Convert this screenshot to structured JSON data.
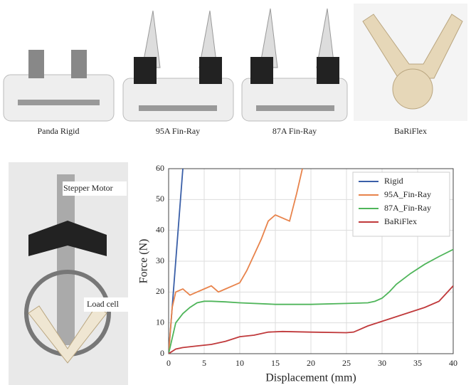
{
  "figure": {
    "captions": [
      "Panda Rigid",
      "95A Fin-Ray",
      "87A Fin-Ray",
      "BaRiFlex"
    ],
    "photo_labels": [
      "Stepper Motor",
      "Load cell"
    ]
  },
  "chart_data": {
    "type": "line",
    "xlabel": "Displacement (mm)",
    "ylabel": "Force (N)",
    "xlim": [
      0,
      40
    ],
    "ylim": [
      0,
      60
    ],
    "xticks": [
      0,
      5,
      10,
      15,
      20,
      25,
      30,
      35,
      40
    ],
    "yticks": [
      0,
      10,
      20,
      30,
      40,
      50,
      60
    ],
    "grid": true,
    "legend": "upper right",
    "series": [
      {
        "name": "Rigid",
        "color": "#3a5fa8",
        "x": [
          0,
          0.5,
          1,
          1.5,
          2
        ],
        "values": [
          0,
          15,
          30,
          45,
          60
        ]
      },
      {
        "name": "95A_Fin-Ray",
        "color": "#e8834b",
        "x": [
          0,
          0.5,
          1,
          2,
          3,
          4,
          5,
          6,
          7,
          8,
          9,
          10,
          11,
          12,
          13,
          14,
          15,
          16,
          17,
          18,
          18.8
        ],
        "values": [
          0,
          15,
          20,
          21,
          19,
          20,
          21,
          22,
          20,
          21,
          22,
          23,
          27,
          32,
          37,
          43,
          45,
          44,
          43,
          52,
          60
        ]
      },
      {
        "name": "87A_Fin-Ray",
        "color": "#4fb55a",
        "x": [
          0,
          1,
          2,
          3,
          4,
          5,
          6,
          8,
          10,
          15,
          20,
          25,
          28,
          29,
          30,
          31,
          32,
          34,
          36,
          38,
          40
        ],
        "values": [
          0,
          10,
          13,
          15,
          16.5,
          17,
          17,
          16.8,
          16.5,
          16,
          16,
          16.3,
          16.5,
          17,
          18,
          20,
          22.5,
          26,
          29,
          31.5,
          33.8
        ]
      },
      {
        "name": "BaRiFlex",
        "color": "#c0393b",
        "x": [
          0,
          1,
          2,
          4,
          6,
          8,
          10,
          12,
          14,
          16,
          20,
          25,
          26,
          28,
          30,
          32,
          34,
          36,
          38,
          40
        ],
        "values": [
          0,
          1.5,
          2,
          2.5,
          3,
          4,
          5.5,
          6,
          7,
          7.2,
          7,
          6.8,
          7,
          9,
          10.5,
          12,
          13.5,
          15,
          17,
          22
        ]
      }
    ]
  }
}
